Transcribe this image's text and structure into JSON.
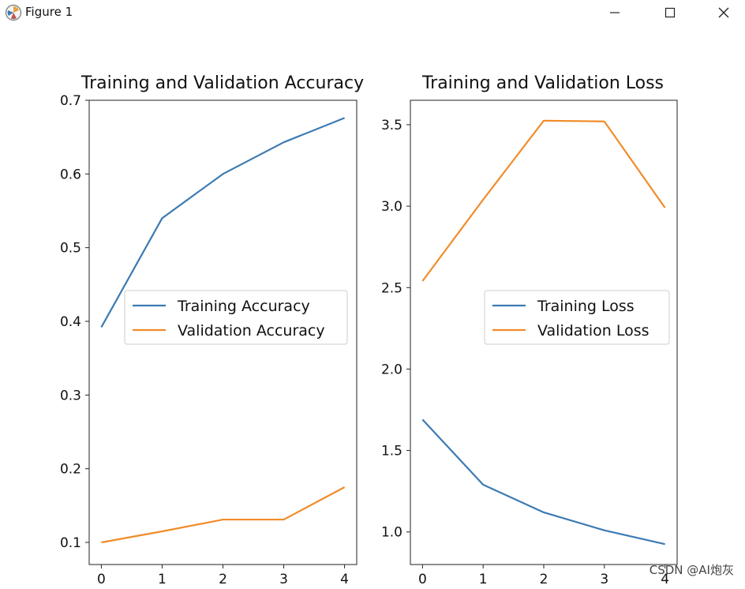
{
  "window": {
    "title": "Figure 1",
    "icons": {
      "app": "matplotlib-figure-icon",
      "minimize": "minimize-icon",
      "maximize": "maximize-icon",
      "close": "close-icon"
    }
  },
  "chart_data": [
    {
      "type": "line",
      "title": "Training and Validation Accuracy",
      "xlabel": "",
      "ylabel": "",
      "x": [
        0,
        1,
        2,
        3,
        4
      ],
      "xlim": [
        -0.2,
        4.2
      ],
      "ylim": [
        0.07,
        0.7
      ],
      "xticks": [
        0,
        1,
        2,
        3,
        4
      ],
      "yticks": [
        0.1,
        0.2,
        0.3,
        0.4,
        0.5,
        0.6,
        0.7
      ],
      "series": [
        {
          "name": "Training Accuracy",
          "color": "#3c7ab2",
          "values": [
            0.392,
            0.54,
            0.6,
            0.643,
            0.676
          ]
        },
        {
          "name": "Validation Accuracy",
          "color": "#f08c2a",
          "values": [
            0.1,
            0.115,
            0.131,
            0.131,
            0.175
          ]
        }
      ],
      "legend": "center-right",
      "grid": false
    },
    {
      "type": "line",
      "title": "Training and Validation Loss",
      "xlabel": "",
      "ylabel": "",
      "x": [
        0,
        1,
        2,
        3,
        4
      ],
      "xlim": [
        -0.2,
        4.2
      ],
      "ylim": [
        0.8,
        3.65
      ],
      "xticks": [
        0,
        1,
        2,
        3,
        4
      ],
      "yticks": [
        1.0,
        1.5,
        2.0,
        2.5,
        3.0,
        3.5
      ],
      "series": [
        {
          "name": "Training Loss",
          "color": "#3c7ab2",
          "values": [
            1.69,
            1.29,
            1.12,
            1.01,
            0.925
          ]
        },
        {
          "name": "Validation Loss",
          "color": "#f08c2a",
          "values": [
            2.54,
            3.04,
            3.525,
            3.52,
            2.99
          ]
        }
      ],
      "legend": "center-right",
      "grid": false
    }
  ],
  "watermark": "CSDN @AI炮灰"
}
